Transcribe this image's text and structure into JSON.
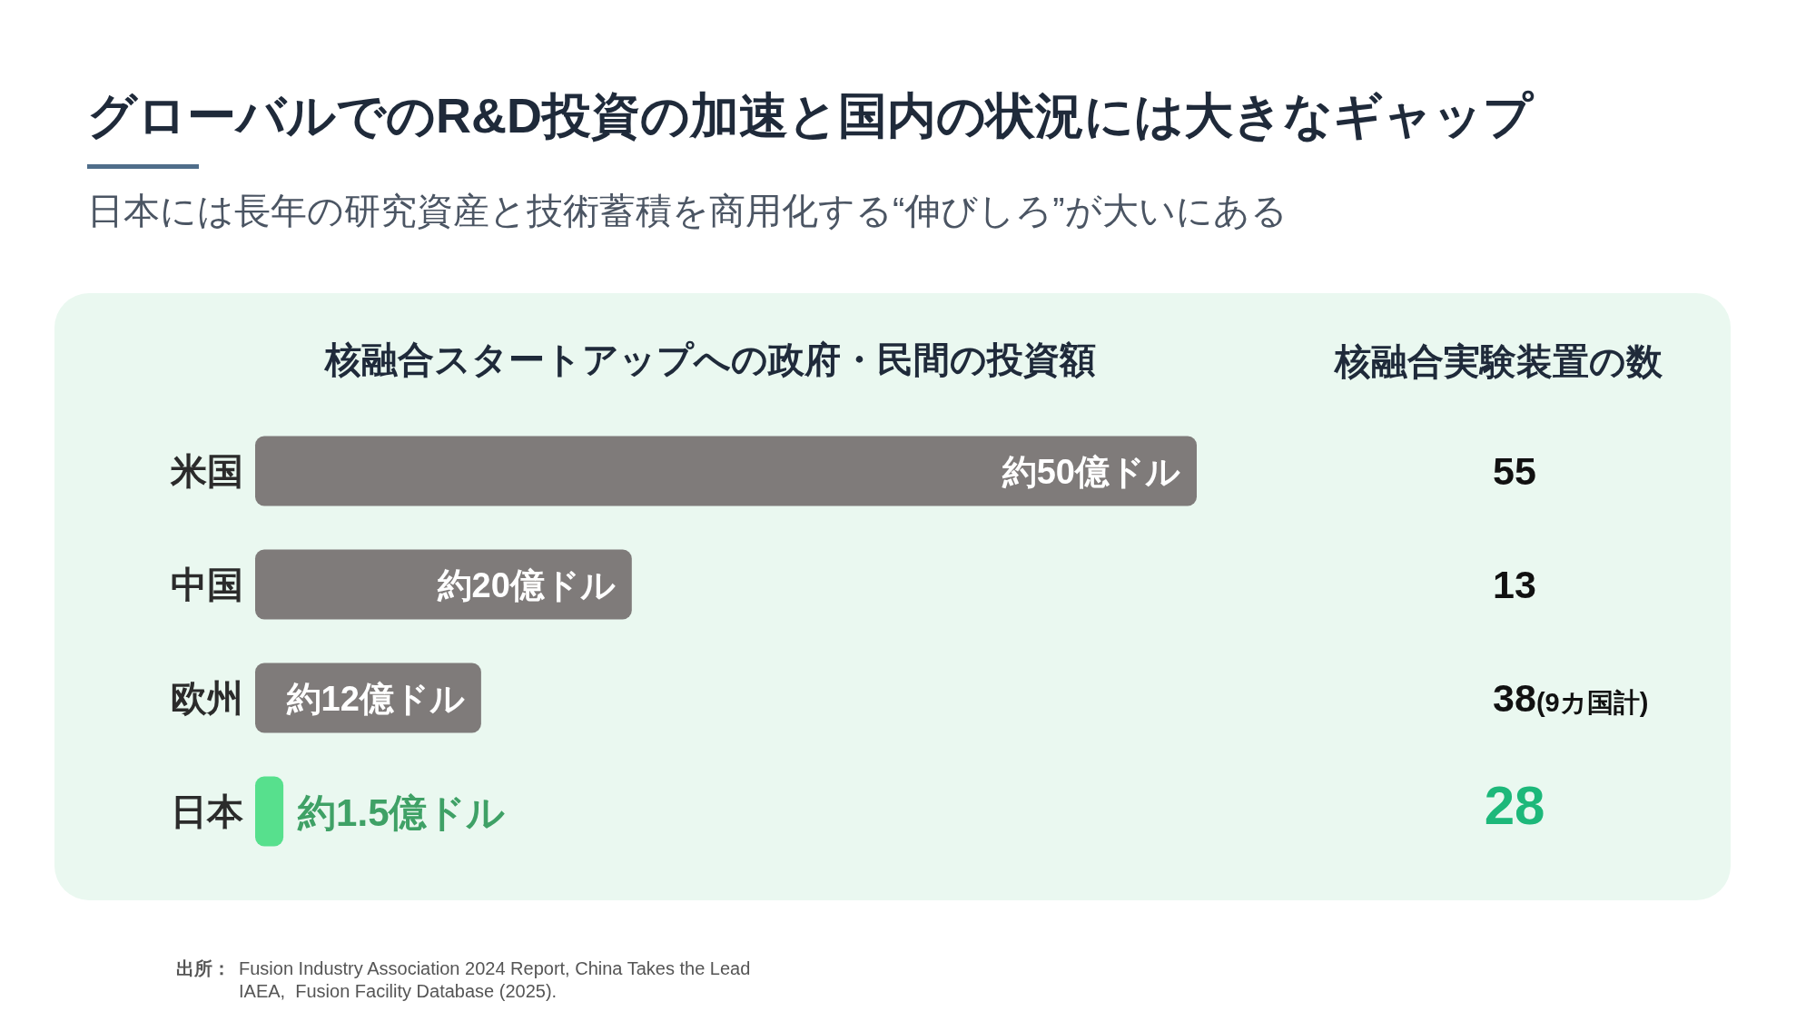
{
  "chart_data": [
    {
      "type": "other",
      "title": "グローバルでのR&D投資の加速と国内の状況には大きなギャップ",
      "subtitle": "日本には長年の研究資産と技術蓄積を商用化する“伸びしろ”が大いにある"
    },
    {
      "type": "bar",
      "orientation": "horizontal",
      "title": "核融合スタートアップへの政府・民間の投資額",
      "categories": [
        "米国",
        "中国",
        "欧州",
        "日本"
      ],
      "values": [
        50,
        20,
        12,
        1.5
      ],
      "value_labels": [
        "約50億ドル",
        "約20億ドル",
        "約12億ドル",
        "約1.5億ドル"
      ],
      "colors": [
        "#7f7b7a",
        "#7f7b7a",
        "#7f7b7a",
        "#57e08d"
      ],
      "tick_labels": "y",
      "annotations": [
        "出所：",
        "Fusion Industry Association 2024 Report, China Takes the Lead",
        "IAEA,  Fusion Facility Database (2025)."
      ]
    },
    {
      "type": "other",
      "title": "核融合実験装置の数",
      "annotations": [
        "55",
        "13",
        "38(9カ国計)",
        "28"
      ],
      "colors": [
        "#111111",
        "#111111",
        "#111111",
        "#1db87a"
      ]
    }
  ]
}
